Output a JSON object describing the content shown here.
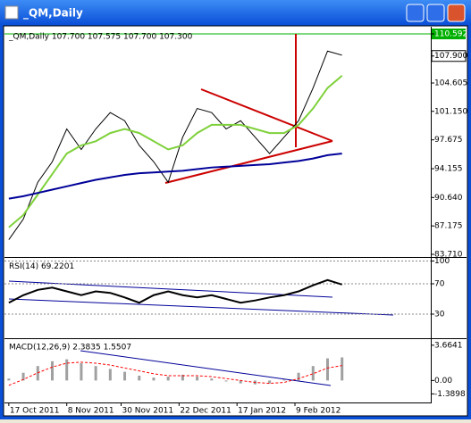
{
  "window": {
    "title": "_QM,Daily"
  },
  "chart_data": [
    {
      "type": "line",
      "title": "_QM,Daily  107.700 107.575 107.700 107.300",
      "x": [
        0,
        4,
        8,
        12,
        16,
        20,
        24,
        28,
        32,
        36,
        40,
        44,
        48,
        52,
        56,
        60,
        64,
        68,
        72,
        76,
        80,
        84,
        88,
        92
      ],
      "series": [
        {
          "color": "#000000",
          "values": [
            85.5,
            88,
            92.5,
            95,
            99,
            96.5,
            99,
            101,
            100,
            97,
            95,
            92.5,
            98,
            101.5,
            101,
            99,
            100,
            98,
            96,
            98,
            100,
            104,
            108.5,
            108
          ]
        },
        {
          "color": "#7fd13b",
          "values": [
            87,
            88.5,
            91,
            93.5,
            96,
            97,
            97.5,
            98.5,
            99,
            98.5,
            97.5,
            96.5,
            97,
            98.5,
            99.5,
            99.5,
            99.5,
            99,
            98.5,
            98.5,
            99.5,
            101.5,
            104,
            105.5
          ]
        },
        {
          "color": "#000099",
          "values": [
            90.5,
            90.8,
            91.2,
            91.6,
            92,
            92.4,
            92.8,
            93.1,
            93.4,
            93.6,
            93.7,
            93.8,
            93.9,
            94.1,
            94.3,
            94.4,
            94.5,
            94.6,
            94.7,
            94.9,
            95.1,
            95.4,
            95.8,
            96
          ]
        }
      ],
      "xlim": [
        -1.2,
        116.5
      ],
      "ylim": [
        83.49,
        110.92
      ],
      "yticks": [
        110.592,
        {
          "value": 107.9,
          "label": "107.900"
        },
        104.605,
        {
          "value": 101.15,
          "label": "101.150"
        },
        97.675,
        94.155,
        {
          "value": 90.64,
          "label": "90.640"
        },
        87.175,
        {
          "value": 83.71,
          "label": "83.710"
        }
      ],
      "grid": false
    },
    {
      "type": "line",
      "title": "RSI(14) 69.2201",
      "x": [
        0,
        4,
        8,
        12,
        16,
        20,
        24,
        28,
        32,
        36,
        40,
        44,
        48,
        52,
        56,
        60,
        64,
        68,
        72,
        76,
        80,
        84,
        88,
        92
      ],
      "series": [
        {
          "color": "#000000",
          "values": [
            45,
            55,
            62,
            65,
            60,
            55,
            60,
            58,
            52,
            45,
            55,
            60,
            55,
            52,
            55,
            50,
            45,
            48,
            52,
            55,
            60,
            68,
            75,
            69
          ]
        }
      ],
      "xlim": [
        -1.2,
        116.5
      ],
      "ylim": [
        0,
        100
      ],
      "yticks": [
        100,
        70,
        30
      ],
      "grid": true
    },
    {
      "type": "macd",
      "title": "MACD(12,26,9) 2.3835 1.5507",
      "x": [
        0,
        4,
        8,
        12,
        16,
        20,
        24,
        28,
        32,
        36,
        40,
        44,
        48,
        52,
        56,
        60,
        64,
        68,
        72,
        76,
        80,
        84,
        88,
        92
      ],
      "series": [
        {
          "color": "#a0a0a0",
          "values": [
            0.2,
            0.8,
            1.5,
            2,
            2.2,
            1.8,
            1.5,
            1.2,
            0.9,
            0.5,
            0.3,
            0.4,
            0.6,
            0.4,
            0.2,
            -0.1,
            -0.3,
            -0.4,
            -0.3,
            0.1,
            0.8,
            1.5,
            2.3,
            2.4
          ]
        },
        {
          "color": "#ff0000",
          "values": [
            -0.5,
            0.1,
            0.8,
            1.4,
            1.8,
            1.9,
            1.8,
            1.6,
            1.3,
            1,
            0.7,
            0.5,
            0.5,
            0.5,
            0.4,
            0.2,
            0,
            -0.2,
            -0.3,
            -0.2,
            0.2,
            0.7,
            1.3,
            1.55
          ]
        }
      ],
      "xlim": [
        -1.2,
        116.5
      ],
      "ylim": [
        -2.19,
        4.02
      ],
      "yticks": [
        3.6641,
        {
          "value": 0,
          "label": "0.00"
        },
        -1.3898
      ],
      "xticks": [
        {
          "value": 0,
          "label": "17 Oct 2011"
        },
        {
          "value": 16,
          "label": "8 Nov 2011"
        },
        {
          "value": 31,
          "label": "30 Nov 2011"
        },
        {
          "value": 47,
          "label": "22 Dec 2011"
        },
        {
          "value": 63,
          "label": "17 Jan 2012"
        },
        {
          "value": 79,
          "label": "9 Feb 2012"
        }
      ]
    }
  ]
}
